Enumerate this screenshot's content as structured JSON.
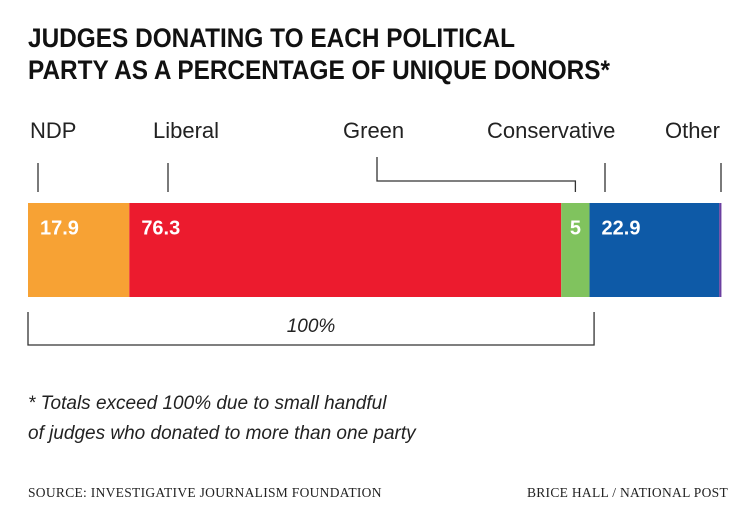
{
  "chart_data": {
    "type": "stacked-bar",
    "title": [
      "JUDGES DONATING TO EACH POLITICAL",
      "PARTY AS A PERCENTAGE OF UNIQUE DONORS*"
    ],
    "series": [
      {
        "name": "NDP",
        "color": "#f7a234",
        "values": [
          17.9
        ]
      },
      {
        "name": "Liberal",
        "color": "#ec1b2e",
        "values": [
          76.3
        ]
      },
      {
        "name": "Green",
        "color": "#80c35e",
        "values": [
          5
        ]
      },
      {
        "name": "Conservative",
        "color": "#0e5aa7",
        "values": [
          22.9
        ]
      },
      {
        "name": "Other",
        "color": "#6b3fa0",
        "values": [
          0.4
        ]
      }
    ],
    "data_labels": [
      true,
      true,
      true,
      true,
      false
    ],
    "xlim": [
      0,
      122.6
    ],
    "total_bracket": {
      "value": 100,
      "label": "100%"
    },
    "footnote": [
      "* Totals exceed 100% due to small handful",
      "of judges who donated to more than one party"
    ],
    "source": "SOURCE: INVESTIGATIVE JOURNALISM FOUNDATION",
    "credit": "BRICE HALL / NATIONAL POST"
  }
}
